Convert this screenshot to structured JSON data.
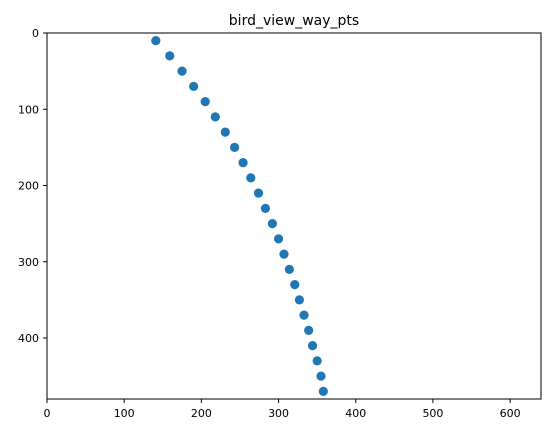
{
  "chart_data": {
    "type": "scatter",
    "title": "bird_view_way_pts",
    "xlabel": "",
    "ylabel": "",
    "xlim": [
      0,
      640
    ],
    "ylim": [
      480,
      0
    ],
    "y_axis_inverted": true,
    "grid": false,
    "legend": "none",
    "x_ticks": [
      0,
      100,
      200,
      300,
      400,
      500,
      600
    ],
    "y_ticks": [
      0,
      100,
      200,
      300,
      400
    ],
    "marker_color": "#1f77b4",
    "series": [
      {
        "x": [
          141,
          159,
          175,
          190,
          205,
          218,
          231,
          243,
          254,
          264,
          274,
          283,
          292,
          300,
          307,
          314,
          321,
          327,
          333,
          339,
          344,
          350,
          355,
          358
        ],
        "y": [
          10,
          30,
          50,
          70,
          90,
          110,
          130,
          150,
          170,
          190,
          210,
          230,
          250,
          270,
          290,
          310,
          330,
          350,
          370,
          390,
          410,
          430,
          450,
          470
        ]
      }
    ]
  }
}
